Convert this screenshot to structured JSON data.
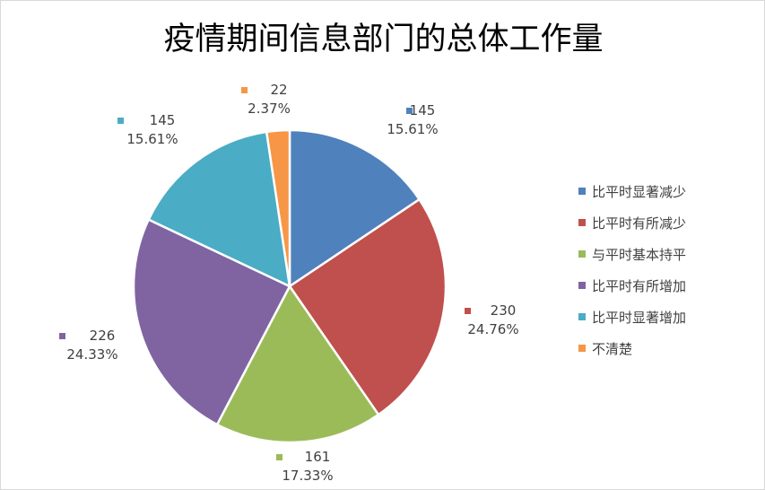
{
  "chart_data": {
    "type": "pie",
    "title": "疫情期间信息部门的总体工作量",
    "series": [
      {
        "name": "比平时显著减少",
        "value": 145,
        "percent": "15.61%",
        "color": "#4F81BD"
      },
      {
        "name": "比平时有所减少",
        "value": 230,
        "percent": "24.76%",
        "color": "#C0504D"
      },
      {
        "name": "与平时基本持平",
        "value": 161,
        "percent": "17.33%",
        "color": "#9BBB59"
      },
      {
        "name": "比平时有所增加",
        "value": 226,
        "percent": "24.33%",
        "color": "#8064A2"
      },
      {
        "name": "比平时显著增加",
        "value": 145,
        "percent": "15.61%",
        "color": "#4BACC6"
      },
      {
        "name": "不清楚",
        "value": 22,
        "percent": "2.37%",
        "color": "#F79646"
      }
    ],
    "legend_position": "right"
  }
}
